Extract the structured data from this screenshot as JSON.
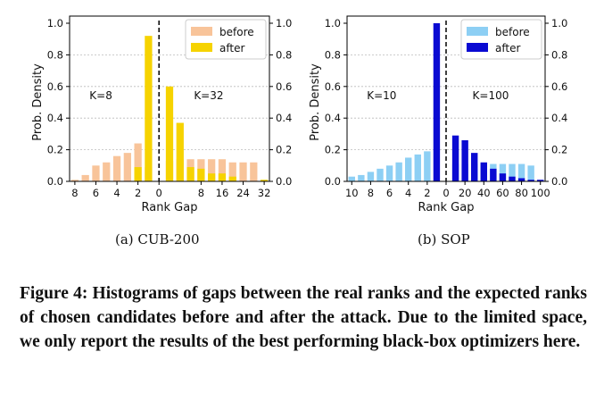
{
  "chart_data": [
    {
      "type": "bar",
      "categories": [
        "8",
        "7",
        "6",
        "5",
        "4",
        "3",
        "2",
        "1",
        "0",
        "1",
        "2",
        "4",
        "8",
        "12",
        "16",
        "20",
        "24",
        "28",
        "32"
      ],
      "xticks": [
        "8",
        "6",
        "4",
        "2",
        "0",
        "8",
        "16",
        "24",
        "32"
      ],
      "yticks": [
        "0.0",
        "0.2",
        "0.4",
        "0.6",
        "0.8",
        "1.0"
      ],
      "series": [
        {
          "name": "before",
          "color": "#f8c49a",
          "values": [
            0.01,
            0.04,
            0.1,
            0.12,
            0.16,
            0.18,
            0.24,
            0.09,
            0.0,
            0.13,
            0.14,
            0.14,
            0.14,
            0.14,
            0.14,
            0.12,
            0.12,
            0.12,
            0.0
          ]
        },
        {
          "name": "after",
          "color": "#f6d300",
          "values": [
            0.0,
            0.0,
            0.0,
            0.0,
            0.0,
            0.0,
            0.09,
            0.92,
            0.0,
            0.6,
            0.37,
            0.09,
            0.08,
            0.05,
            0.05,
            0.03,
            0.0,
            0.0,
            0.01
          ]
        }
      ],
      "annotations": {
        "left": "K=8",
        "right": "K=32"
      },
      "xlabel": "Rank Gap",
      "ylabel": "Prob. Density",
      "ylim": [
        0,
        1.0
      ],
      "legend": "top-right",
      "subtitle": "(a)  CUB-200"
    },
    {
      "type": "bar",
      "categories": [
        "10",
        "9",
        "8",
        "7",
        "6",
        "5",
        "4",
        "3",
        "2",
        "1",
        "0",
        "10",
        "20",
        "30",
        "40",
        "50",
        "60",
        "70",
        "80",
        "90",
        "100"
      ],
      "xticks": [
        "10",
        "8",
        "6",
        "4",
        "2",
        "0",
        "20",
        "40",
        "60",
        "80",
        "100"
      ],
      "yticks": [
        "0.0",
        "0.2",
        "0.4",
        "0.6",
        "0.8",
        "1.0"
      ],
      "series": [
        {
          "name": "before",
          "color": "#8dcff4",
          "values": [
            0.03,
            0.04,
            0.06,
            0.08,
            0.1,
            0.12,
            0.15,
            0.17,
            0.19,
            0.0,
            0.0,
            0.11,
            0.11,
            0.11,
            0.11,
            0.11,
            0.11,
            0.11,
            0.11,
            0.1,
            0.0
          ]
        },
        {
          "name": "after",
          "color": "#0a0ad2",
          "values": [
            0.0,
            0.0,
            0.0,
            0.0,
            0.0,
            0.0,
            0.0,
            0.0,
            0.0,
            1.0,
            0.0,
            0.29,
            0.26,
            0.18,
            0.12,
            0.08,
            0.05,
            0.03,
            0.02,
            0.01,
            0.01
          ]
        }
      ],
      "annotations": {
        "left": "K=10",
        "right": "K=100"
      },
      "xlabel": "Rank Gap",
      "ylabel": "Prob. Density",
      "ylim": [
        0,
        1.0
      ],
      "legend": "top-right",
      "subtitle": "(b)  SOP"
    }
  ],
  "caption": "Figure 4: Histograms of gaps between the real ranks and the expected ranks of chosen candidates before and after the attack. Due to the limited space, we only report the results of the best performing black-box optimizers here."
}
